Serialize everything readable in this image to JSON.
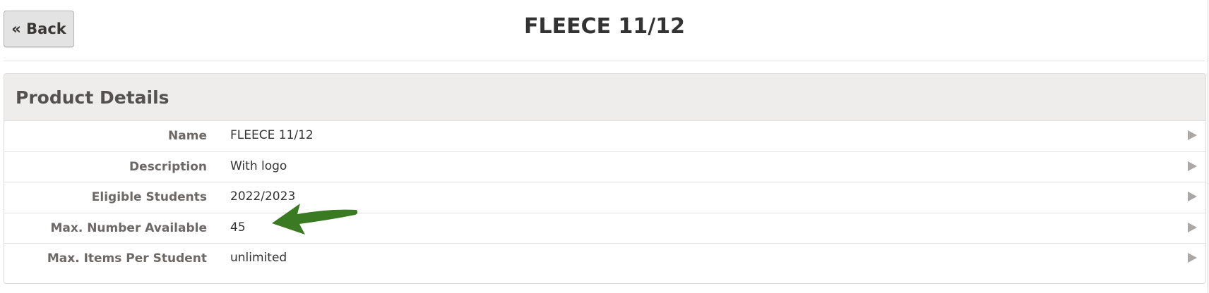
{
  "header": {
    "back_label": "« Back",
    "title": "FLEECE 11/12"
  },
  "panel": {
    "title": "Product Details",
    "rows": [
      {
        "label": "Name",
        "value": "FLEECE 11/12"
      },
      {
        "label": "Description",
        "value": "With logo"
      },
      {
        "label": "Eligible Students",
        "value": "2022/2023"
      },
      {
        "label": "Max. Number Available",
        "value": "45"
      },
      {
        "label": "Max. Items Per Student",
        "value": "unlimited"
      }
    ]
  },
  "annotation": {
    "icon": "green-arrow-icon",
    "color": "#3a7a22"
  }
}
